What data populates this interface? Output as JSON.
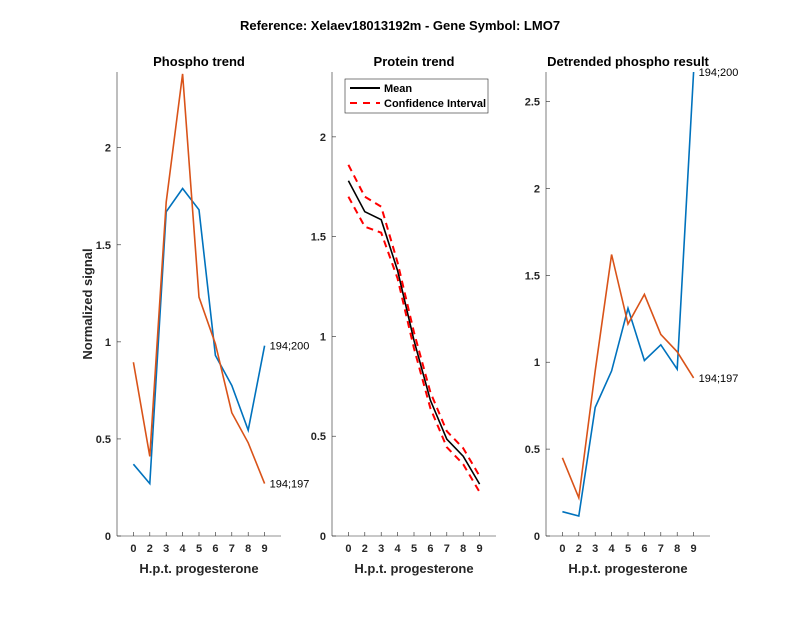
{
  "chart_data": {
    "suptitle": "Reference:  Xelaev18013192m - Gene Symbol:  LMO7",
    "panels": [
      {
        "type": "line",
        "title": "Phospho trend",
        "xlabel": "H.p.t. progesterone",
        "ylabel": "Normalized signal",
        "categories": [
          "0",
          "2",
          "3",
          "4",
          "5",
          "6",
          "7",
          "8",
          "9"
        ],
        "ylim": [
          0,
          2.39
        ],
        "yticks": [
          0,
          0.5,
          1,
          1.5,
          2
        ],
        "ytick_labels": [
          "0",
          "0.5",
          "1",
          "1.5",
          "2"
        ],
        "series": [
          {
            "name": "194;200",
            "color": "#0072BD",
            "values": [
              0.37,
              0.27,
              1.67,
              1.79,
              1.68,
              0.93,
              0.775,
              0.545,
              0.98
            ]
          },
          {
            "name": "194;197",
            "color": "#D95319",
            "values": [
              0.895,
              0.41,
              1.72,
              2.38,
              1.23,
              0.99,
              0.635,
              0.48,
              0.27
            ]
          }
        ]
      },
      {
        "type": "line",
        "title": "Protein trend",
        "xlabel": "H.p.t. progesterone",
        "ylabel": "",
        "categories": [
          "0",
          "2",
          "3",
          "4",
          "5",
          "6",
          "7",
          "8",
          "9"
        ],
        "ylim": [
          0,
          2.325
        ],
        "yticks": [
          0,
          0.5,
          1,
          1.5,
          2
        ],
        "ytick_labels": [
          "0",
          "0.5",
          "1",
          "1.5",
          "2"
        ],
        "legend": {
          "position": "top",
          "entries": [
            "Mean",
            "Confidence Interval"
          ]
        },
        "series": [
          {
            "name": "Mean",
            "color": "#000000",
            "style": "solid",
            "values": [
              1.78,
              1.625,
              1.585,
              1.33,
              0.98,
              0.68,
              0.485,
              0.4,
              0.26
            ]
          },
          {
            "name": "Confidence Interval upper",
            "color": "#FF0000",
            "style": "dashed",
            "values": [
              1.86,
              1.7,
              1.65,
              1.37,
              1.02,
              0.72,
              0.525,
              0.44,
              0.3
            ]
          },
          {
            "name": "Confidence Interval lower",
            "color": "#FF0000",
            "style": "dashed",
            "values": [
              1.7,
              1.55,
              1.52,
              1.29,
              0.94,
              0.64,
              0.445,
              0.36,
              0.22
            ]
          }
        ]
      },
      {
        "type": "line",
        "title": "Detrended phospho result",
        "xlabel": "H.p.t. progesterone",
        "ylabel": "",
        "categories": [
          "0",
          "2",
          "3",
          "4",
          "5",
          "6",
          "7",
          "8",
          "9"
        ],
        "ylim": [
          0,
          2.67
        ],
        "yticks": [
          0,
          0.5,
          1,
          1.5,
          2,
          2.5
        ],
        "ytick_labels": [
          "0",
          "0.5",
          "1",
          "1.5",
          "2",
          "2.5"
        ],
        "series": [
          {
            "name": "194;200",
            "color": "#0072BD",
            "values": [
              0.14,
              0.115,
              0.74,
              0.95,
              1.31,
              1.01,
              1.1,
              0.96,
              2.67
            ]
          },
          {
            "name": "194;197",
            "color": "#D95319",
            "values": [
              0.45,
              0.22,
              0.95,
              1.62,
              1.22,
              1.39,
              1.16,
              1.06,
              0.91
            ]
          }
        ]
      }
    ]
  }
}
